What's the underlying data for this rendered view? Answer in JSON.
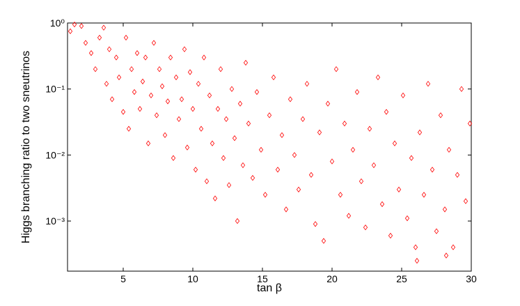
{
  "chart_data": {
    "type": "scatter",
    "xlabel": "tan β",
    "ylabel": "Higgs branching ratio to two sneutrinos",
    "xlim": [
      1,
      30
    ],
    "xticks": [
      5,
      10,
      15,
      20,
      25,
      30
    ],
    "ylim": [
      0.000174,
      1
    ],
    "yscale": "log",
    "yticks": [
      {
        "value": 0.001,
        "label": "10⁻³"
      },
      {
        "value": 0.01,
        "label": "10⁻²"
      },
      {
        "value": 0.1,
        "label": "10⁻¹"
      },
      {
        "value": 1,
        "label": "10⁰"
      }
    ],
    "marker": "diamond",
    "series": [
      {
        "color": "#ff0000",
        "x": [
          1.2,
          1.5,
          2.0,
          2.3,
          2.7,
          3.0,
          3.3,
          3.6,
          3.8,
          4.0,
          4.2,
          4.5,
          4.7,
          5.0,
          5.2,
          5.4,
          5.6,
          5.8,
          6.0,
          6.2,
          6.4,
          6.6,
          6.8,
          7.0,
          7.2,
          7.4,
          7.6,
          7.8,
          8.0,
          8.2,
          8.4,
          8.6,
          8.8,
          9.0,
          9.2,
          9.4,
          9.6,
          9.8,
          10.0,
          10.2,
          10.4,
          10.6,
          10.8,
          11.0,
          11.2,
          11.4,
          11.6,
          11.8,
          12.0,
          12.2,
          12.4,
          12.6,
          12.8,
          13.0,
          13.2,
          13.4,
          13.6,
          13.8,
          14.0,
          14.3,
          14.6,
          14.9,
          15.2,
          15.5,
          15.8,
          16.1,
          16.4,
          16.7,
          17.0,
          17.3,
          17.6,
          17.9,
          18.2,
          18.5,
          18.8,
          19.1,
          19.4,
          19.7,
          20.0,
          20.3,
          20.6,
          20.9,
          21.2,
          21.5,
          21.8,
          22.1,
          22.4,
          22.7,
          23.0,
          23.3,
          23.6,
          23.9,
          24.2,
          24.5,
          24.8,
          25.1,
          25.4,
          25.7,
          26.0,
          26.3,
          26.6,
          26.9,
          27.2,
          27.5,
          27.8,
          28.1,
          28.4,
          28.7,
          29.0,
          29.3,
          29.6,
          29.9,
          26.1,
          28.2
        ],
        "values": [
          0.75,
          0.95,
          0.9,
          0.5,
          0.35,
          0.2,
          0.6,
          0.85,
          0.12,
          0.4,
          0.07,
          0.3,
          0.15,
          0.045,
          0.6,
          0.025,
          0.2,
          0.09,
          0.35,
          0.05,
          0.13,
          0.3,
          0.015,
          0.08,
          0.5,
          0.04,
          0.2,
          0.11,
          0.02,
          0.065,
          0.3,
          0.009,
          0.15,
          0.035,
          0.07,
          0.4,
          0.013,
          0.18,
          0.05,
          0.006,
          0.12,
          0.025,
          0.3,
          0.004,
          0.08,
          0.015,
          0.0022,
          0.05,
          0.2,
          0.009,
          0.035,
          0.0035,
          0.1,
          0.018,
          0.001,
          0.06,
          0.007,
          0.25,
          0.03,
          0.0045,
          0.09,
          0.012,
          0.0025,
          0.04,
          0.15,
          0.006,
          0.02,
          0.0015,
          0.07,
          0.01,
          0.003,
          0.035,
          0.12,
          0.005,
          0.0009,
          0.022,
          0.0005,
          0.06,
          0.008,
          0.2,
          0.0025,
          0.03,
          0.0012,
          0.012,
          0.09,
          0.004,
          0.0008,
          0.025,
          0.007,
          0.15,
          0.0018,
          0.045,
          0.0006,
          0.015,
          0.003,
          0.08,
          0.0011,
          0.009,
          0.0004,
          0.022,
          0.0025,
          0.12,
          0.006,
          0.0007,
          0.04,
          0.0015,
          0.012,
          0.0004,
          0.005,
          0.1,
          0.002,
          0.03,
          0.00025,
          0.0003
        ]
      }
    ]
  }
}
